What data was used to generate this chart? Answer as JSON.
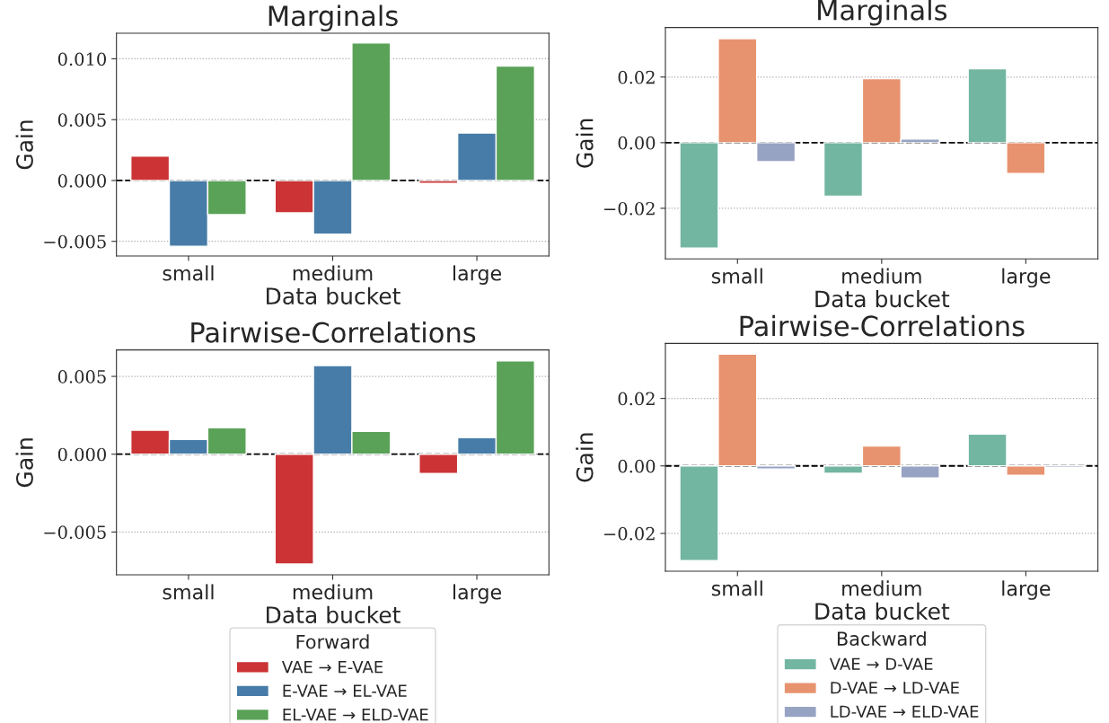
{
  "chart_data": [
    {
      "type": "bar",
      "title": "Marginals",
      "xlabel": "Data bucket",
      "ylabel": "Gain",
      "categories": [
        "small",
        "medium",
        "large"
      ],
      "series": [
        {
          "color": "#cb3335",
          "values": [
            0.002,
            -0.00266,
            -0.00023
          ]
        },
        {
          "color": "#477ca8",
          "values": [
            -0.0054,
            -0.0044,
            0.0039
          ]
        },
        {
          "color": "#59a257",
          "values": [
            -0.0028,
            0.0113,
            0.0094
          ]
        }
      ],
      "ylim": [
        -0.0062,
        0.0121
      ],
      "yticks": [
        {
          "value": -0.005,
          "label": "−0.005"
        },
        {
          "value": 0,
          "label": "0.000"
        },
        {
          "value": 0.005,
          "label": "0.005"
        },
        {
          "value": 0.01,
          "label": "0.010"
        }
      ],
      "grid": "y",
      "ref_lines": [
        {
          "axis": "y",
          "value": 0,
          "color": "#000000",
          "line_style": "dashed"
        }
      ]
    },
    {
      "type": "bar",
      "title": "Marginals",
      "xlabel": "Data bucket",
      "ylabel": "Gain",
      "categories": [
        "small",
        "medium",
        "large"
      ],
      "series": [
        {
          "color": "#72b6a1",
          "values": [
            -0.0321,
            -0.0163,
            0.0225
          ]
        },
        {
          "color": "#e8936f",
          "values": [
            0.0317,
            0.0195,
            -0.0094
          ]
        },
        {
          "color": "#97a3c3",
          "values": [
            -0.0058,
            0.0011,
            null
          ]
        }
      ],
      "ylim": [
        -0.0354,
        0.0351
      ],
      "yticks": [
        {
          "value": -0.02,
          "label": "−0.02"
        },
        {
          "value": 0,
          "label": "0.00"
        },
        {
          "value": 0.02,
          "label": "0.02"
        }
      ],
      "grid": "y",
      "ref_lines": [
        {
          "axis": "y",
          "value": 0,
          "color": "#000000",
          "line_style": "dashed"
        }
      ]
    },
    {
      "type": "bar",
      "title": "Pairwise-Correlations",
      "xlabel": "Data bucket",
      "ylabel": "Gain",
      "categories": [
        "small",
        "medium",
        "large"
      ],
      "series": [
        {
          "name": "VAE → E-VAE",
          "color": "#cb3335",
          "values": [
            0.00154,
            -0.00706,
            -0.00124
          ]
        },
        {
          "name": "E-VAE → EL-VAE",
          "color": "#477ca8",
          "values": [
            0.00094,
            0.00569,
            0.00106
          ]
        },
        {
          "name": "EL-VAE → ELD-VAE",
          "color": "#59a257",
          "values": [
            0.0017,
            0.00147,
            0.00599
          ]
        }
      ],
      "ylim": [
        -0.00775,
        0.0067
      ],
      "yticks": [
        {
          "value": -0.005,
          "label": "−0.005"
        },
        {
          "value": 0,
          "label": "0.000"
        },
        {
          "value": 0.005,
          "label": "0.005"
        }
      ],
      "grid": "y",
      "legend": "bottom",
      "legend_title": "Forward",
      "ref_lines": [
        {
          "axis": "y",
          "value": 0,
          "color": "#000000",
          "line_style": "dashed"
        }
      ]
    },
    {
      "type": "bar",
      "title": "Pairwise-Correlations",
      "xlabel": "Data bucket",
      "ylabel": "Gain",
      "categories": [
        "small",
        "medium",
        "large"
      ],
      "series": [
        {
          "name": "VAE → D-VAE",
          "color": "#72b6a1",
          "values": [
            -0.0281,
            -0.0022,
            0.0094
          ]
        },
        {
          "name": "D-VAE → LD-VAE",
          "color": "#e8936f",
          "values": [
            0.0331,
            0.0059,
            -0.0028
          ]
        },
        {
          "name": "LD-VAE → ELD-VAE",
          "color": "#97a3c3",
          "values": [
            -0.0009,
            -0.0036,
            -0.0005
          ]
        }
      ],
      "ylim": [
        -0.0312,
        0.0363
      ],
      "yticks": [
        {
          "value": -0.02,
          "label": "−0.02"
        },
        {
          "value": 0,
          "label": "0.00"
        },
        {
          "value": 0.02,
          "label": "0.02"
        }
      ],
      "grid": "y",
      "legend": "bottom",
      "legend_title": "Backward",
      "ref_lines": [
        {
          "axis": "y",
          "value": 0,
          "color": "#000000",
          "line_style": "dashed"
        }
      ]
    }
  ]
}
